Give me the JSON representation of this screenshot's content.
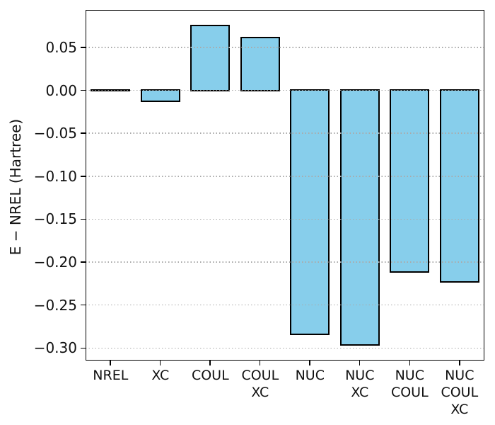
{
  "figure": {
    "background": "#ffffff"
  },
  "chart_data": {
    "type": "bar",
    "title": "",
    "xlabel": "",
    "ylabel": "E − NREL (Hartree)",
    "categories": [
      "NREL",
      "XC",
      "COUL",
      "COUL\nXC",
      "NUC",
      "NUC\nXC",
      "NUC\nCOUL",
      "NUC\nCOUL\nXC"
    ],
    "values": [
      0.0,
      -0.013,
      0.075,
      0.061,
      -0.284,
      -0.296,
      -0.211,
      -0.223
    ],
    "ylim": [
      -0.3146,
      0.0936
    ],
    "yticks": [
      0.05,
      0.0,
      -0.05,
      -0.1,
      -0.15,
      -0.2,
      -0.25,
      -0.3
    ],
    "ytick_labels": [
      "0.05",
      "0.00",
      "−0.05",
      "−0.10",
      "−0.15",
      "−0.20",
      "−0.25",
      "−0.30"
    ],
    "grid": "horizontal dotted, drawn above bars",
    "legend_position": "none",
    "colors": {
      "bar_fill": "#87CEEB",
      "bar_edge": "#000000",
      "grid_color": "#aaaaaa",
      "spine_color": "#000000",
      "text_color": "#111111"
    }
  }
}
